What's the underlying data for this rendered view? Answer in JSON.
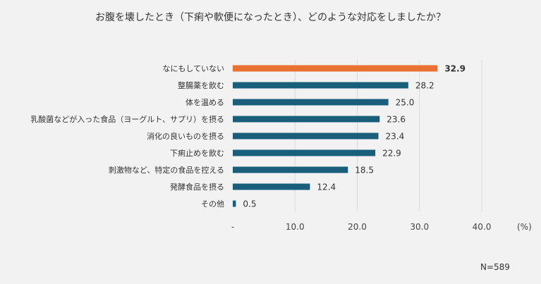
{
  "chart_data": {
    "type": "bar",
    "orientation": "horizontal",
    "title": "お腹を壊したとき（下痢や軟便になったとき）、どのような対応をしましたか？",
    "categories": [
      "なにもしていない",
      "整腸薬を飲む",
      "体を温める",
      "乳酸菌などが入った食品（ヨーグルト、サプリ）を摂る",
      "消化の良いものを摂る",
      "下痢止めを飲む",
      "刺激物など、特定の食品を控える",
      "発酵食品を摂る",
      "その他"
    ],
    "values": [
      32.9,
      28.2,
      25.0,
      23.6,
      23.4,
      22.9,
      18.5,
      12.4,
      0.5
    ],
    "data_labels": [
      "32.9",
      "28.2",
      "25.0",
      "23.6",
      "23.4",
      "22.9",
      "18.5",
      "12.4",
      "0.5"
    ],
    "xlim": [
      0,
      40
    ],
    "x_ticks": [
      "-",
      "10.0",
      "20.0",
      "30.0",
      "40.0"
    ],
    "x_tick_values": [
      0,
      10,
      20,
      30,
      40
    ],
    "unit": "(%)",
    "note": "N=589",
    "grid": true,
    "colors": {
      "highlight": "#E97132",
      "default": "#1B5E7C",
      "grid": "#d9d9d9"
    }
  }
}
